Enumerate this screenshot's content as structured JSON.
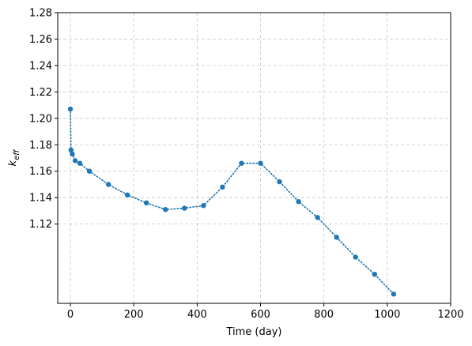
{
  "chart_data": {
    "type": "line",
    "title": "",
    "xlabel": "Time (day)",
    "ylabel_main": "k",
    "ylabel_sub": "eff",
    "xlim": [
      -40,
      1200
    ],
    "ylim": [
      1.06,
      1.28
    ],
    "x_ticks": [
      0,
      200,
      400,
      600,
      800,
      1000,
      1200
    ],
    "x_tick_labels": [
      "0",
      "200",
      "400",
      "600",
      "800",
      "1000",
      "1200"
    ],
    "y_ticks": [
      1.12,
      1.14,
      1.16,
      1.18,
      1.2,
      1.22,
      1.24,
      1.26,
      1.28
    ],
    "y_tick_labels": [
      "1.12",
      "1.14",
      "1.16",
      "1.18",
      "1.20",
      "1.22",
      "1.24",
      "1.26",
      "1.28"
    ],
    "grid": true,
    "grid_style": "dashed",
    "line_style": "dotted",
    "marker": "circle",
    "color": "#1f77b4",
    "series": [
      {
        "x": [
          0,
          2,
          6,
          15,
          30,
          60,
          120,
          180,
          240,
          300,
          360,
          420,
          480,
          540,
          600,
          660,
          720,
          780,
          840,
          900,
          960,
          1020
        ],
        "y": [
          1.207,
          1.176,
          1.173,
          1.168,
          1.166,
          1.16,
          1.15,
          1.142,
          1.136,
          1.131,
          1.132,
          1.134,
          1.148,
          1.166,
          1.166,
          1.152,
          1.137,
          1.125,
          1.11,
          1.095,
          1.082,
          1.067
        ]
      }
    ]
  }
}
